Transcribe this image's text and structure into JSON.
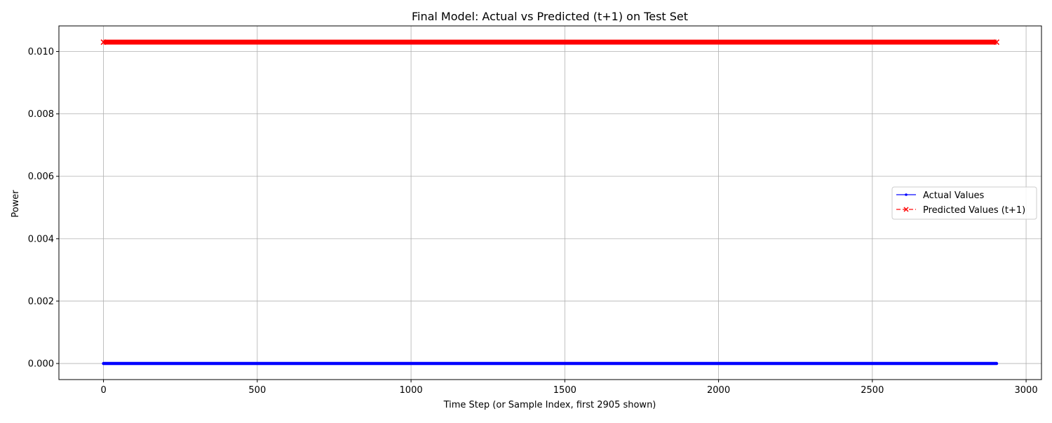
{
  "chart_data": {
    "type": "line",
    "title": "Final Model: Actual vs Predicted (t+1) on Test Set",
    "xlabel": "Time Step (or Sample Index, first 2905 shown)",
    "ylabel": "Power",
    "xlim": [
      -145,
      3050
    ],
    "ylim": [
      -0.000515,
      0.01082
    ],
    "x_ticks": [
      0,
      500,
      1000,
      1500,
      2000,
      2500,
      3000
    ],
    "x_tick_labels": [
      "0",
      "500",
      "1000",
      "1500",
      "2000",
      "2500",
      "3000"
    ],
    "y_ticks": [
      0.0,
      0.002,
      0.004,
      0.006,
      0.008,
      0.01
    ],
    "y_tick_labels": [
      "0.000",
      "0.002",
      "0.004",
      "0.006",
      "0.008",
      "0.010"
    ],
    "grid": true,
    "legend_position": "right",
    "n_points": 2905,
    "series": [
      {
        "name": "Actual Values",
        "x_start": 0,
        "x_end": 2904,
        "values_constant": 0.0,
        "color": "#0000ff",
        "linestyle": "solid",
        "marker": "dot"
      },
      {
        "name": "Predicted Values (t+1)",
        "x_start": 0,
        "x_end": 2904,
        "values_constant": 0.0103,
        "color": "#ff0000",
        "linestyle": "dashed",
        "marker": "x"
      }
    ]
  }
}
